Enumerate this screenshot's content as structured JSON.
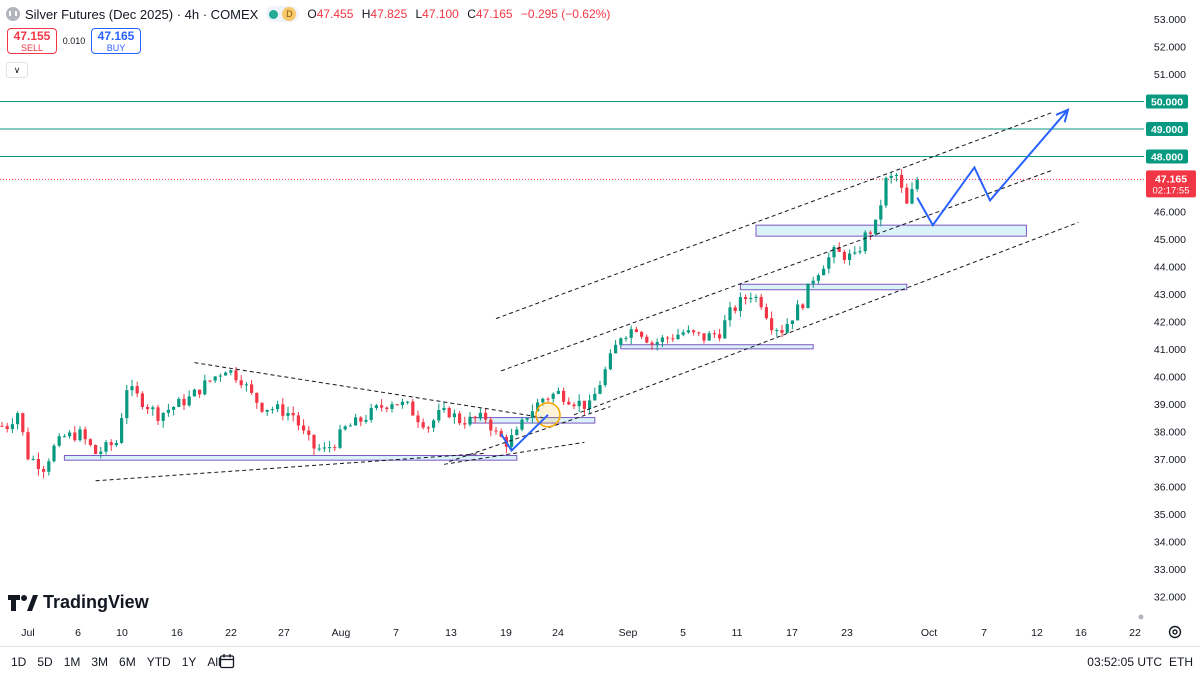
{
  "header": {
    "title": "Silver Futures (Dec 2025) · 4h · COMEX",
    "badge_d": "D",
    "ohlc": [
      {
        "k": "O",
        "v": "47.455"
      },
      {
        "k": "H",
        "v": "47.825"
      },
      {
        "k": "L",
        "v": "47.100"
      },
      {
        "k": "C",
        "v": "47.165"
      },
      {
        "k": "",
        "v": "−0.295 (−0.62%)"
      }
    ]
  },
  "trade": {
    "sell_price": "47.155",
    "sell_label": "SELL",
    "spread": "0.010",
    "buy_price": "47.165",
    "buy_label": "BUY"
  },
  "logo_text": "TradingView",
  "bottom": {
    "ranges": [
      "1D",
      "5D",
      "1M",
      "3M",
      "6M",
      "YTD",
      "1Y",
      "All"
    ],
    "clock": "03:52:05 UTC",
    "session": "ETH"
  },
  "colors": {
    "up": "#089981",
    "down": "#f23645",
    "level": "#089981",
    "zone_fill": "#d9f3f8",
    "zone_border": "#7e57c2",
    "projection": "#2962ff",
    "highlight": "#f7a600"
  },
  "chart_data": {
    "type": "candlestick",
    "interval": "4h",
    "ylim": [
      31.5,
      53.4
    ],
    "y_ticks": [
      "32.000",
      "33.000",
      "34.000",
      "35.000",
      "36.000",
      "37.000",
      "38.000",
      "39.000",
      "40.000",
      "41.000",
      "42.000",
      "43.000",
      "44.000",
      "45.000",
      "46.000",
      "47.000",
      "48.000",
      "49.000",
      "50.000",
      "51.000",
      "52.000",
      "53.000"
    ],
    "x_ticks": [
      "Jul",
      "6",
      "10",
      "16",
      "22",
      "27",
      "Aug",
      "7",
      "13",
      "19",
      "24",
      "Sep",
      "5",
      "11",
      "17",
      "23",
      "Oct",
      "7",
      "12",
      "16",
      "22"
    ],
    "path": [
      [
        1,
        38.2
      ],
      [
        3,
        38.7
      ],
      [
        5,
        37.1
      ],
      [
        8,
        36.7
      ],
      [
        10,
        37.4
      ],
      [
        12,
        37.8
      ],
      [
        15,
        37.9
      ],
      [
        18,
        37.2
      ],
      [
        22,
        37.6
      ],
      [
        24,
        39.6
      ],
      [
        27,
        39.1
      ],
      [
        30,
        38.6
      ],
      [
        33,
        38.9
      ],
      [
        36,
        39.2
      ],
      [
        39,
        39.7
      ],
      [
        43,
        40.3
      ],
      [
        46,
        39.9
      ],
      [
        48,
        39.3
      ],
      [
        50,
        38.9
      ],
      [
        53,
        38.8
      ],
      [
        56,
        38.6
      ],
      [
        58,
        37.9
      ],
      [
        60,
        37.4
      ],
      [
        62,
        37.3
      ],
      [
        64,
        37.6
      ],
      [
        66,
        38.1
      ],
      [
        69,
        38.4
      ],
      [
        72,
        38.8
      ],
      [
        75,
        39.1
      ],
      [
        78,
        38.9
      ],
      [
        80,
        38.5
      ],
      [
        82,
        38.2
      ],
      [
        84,
        38.6
      ],
      [
        86,
        38.7
      ],
      [
        88,
        38.4
      ],
      [
        90,
        38.4
      ],
      [
        93,
        38.5
      ],
      [
        95,
        37.9
      ],
      [
        97,
        37.6
      ],
      [
        99,
        37.9
      ],
      [
        101,
        38.6
      ],
      [
        104,
        39.2
      ],
      [
        107,
        39.4
      ],
      [
        110,
        39.1
      ],
      [
        113,
        38.9
      ],
      [
        116,
        40.2
      ],
      [
        119,
        41.5
      ],
      [
        122,
        41.8
      ],
      [
        125,
        41.2
      ],
      [
        128,
        41.4
      ],
      [
        131,
        41.6
      ],
      [
        135,
        41.4
      ],
      [
        138,
        41.6
      ],
      [
        140,
        42.3
      ],
      [
        142,
        42.7
      ],
      [
        144,
        43.0
      ],
      [
        146,
        42.7
      ],
      [
        148,
        41.9
      ],
      [
        150,
        41.7
      ],
      [
        152,
        42.2
      ],
      [
        154,
        42.7
      ],
      [
        156,
        43.6
      ],
      [
        158,
        44.1
      ],
      [
        160,
        44.5
      ],
      [
        162,
        44.4
      ],
      [
        164,
        44.3
      ],
      [
        166,
        45.1
      ],
      [
        168,
        45.5
      ],
      [
        170,
        47.1
      ],
      [
        172,
        47.3
      ],
      [
        174,
        46.2
      ],
      [
        176,
        47.165
      ]
    ],
    "levels": [
      48.0,
      49.0,
      50.0
    ],
    "level_labels": [
      "48.000",
      "49.000",
      "50.000"
    ],
    "last_price": 47.165,
    "last_label": "47.165",
    "countdown": "02:17:55",
    "zones": [
      {
        "from": 12,
        "to": 99,
        "low": 36.95,
        "high": 37.12
      },
      {
        "from": 90,
        "to": 114,
        "low": 38.3,
        "high": 38.5
      },
      {
        "from": 119,
        "to": 156,
        "low": 41.0,
        "high": 41.15
      },
      {
        "from": 142,
        "to": 174,
        "low": 43.15,
        "high": 43.35
      },
      {
        "from": 145,
        "to": 197,
        "low": 45.1,
        "high": 45.5
      }
    ],
    "trendlines": [
      {
        "p1": [
          18,
          36.2
        ],
        "p2": [
          93,
          37.2
        ]
      },
      {
        "p1": [
          37,
          40.5
        ],
        "p2": [
          104,
          38.5
        ]
      },
      {
        "p1": [
          85,
          36.8
        ],
        "p2": [
          112,
          37.6
        ]
      },
      {
        "p1": [
          86,
          36.9
        ],
        "p2": [
          117,
          38.9
        ]
      },
      {
        "p1": [
          95,
          42.1
        ],
        "p2": [
          202,
          49.6
        ]
      },
      {
        "p1": [
          96,
          40.2
        ],
        "p2": [
          202,
          47.5
        ]
      },
      {
        "p1": [
          110,
          38.6
        ],
        "p2": [
          207,
          45.6
        ]
      }
    ],
    "projection": [
      [
        176,
        46.5
      ],
      [
        179,
        45.5
      ],
      [
        187,
        47.6
      ],
      [
        190,
        46.4
      ],
      [
        205,
        49.7
      ]
    ],
    "pullback_arrow": [
      [
        96,
        37.9
      ],
      [
        98,
        37.3
      ],
      [
        105,
        38.6
      ]
    ],
    "highlight_circle": {
      "x": 105,
      "y": 38.6
    }
  }
}
